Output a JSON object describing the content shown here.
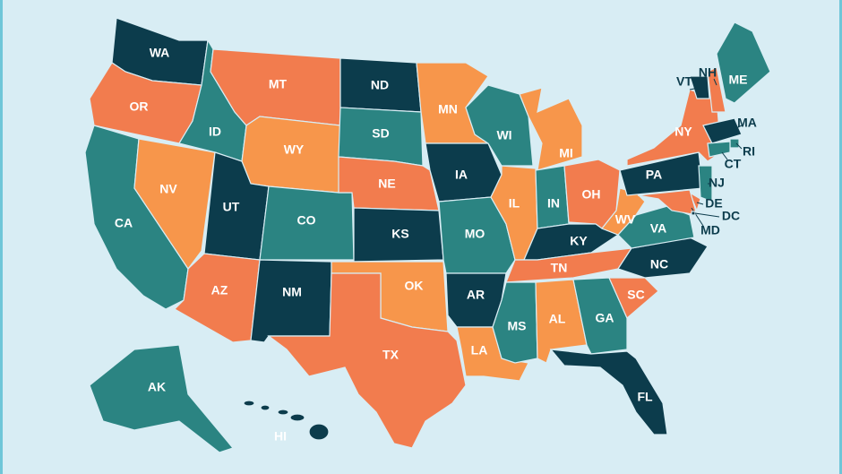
{
  "states": [
    {
      "label": "WA"
    },
    {
      "label": "OR"
    },
    {
      "label": "CA"
    },
    {
      "label": "NV"
    },
    {
      "label": "ID"
    },
    {
      "label": "MT"
    },
    {
      "label": "WY"
    },
    {
      "label": "UT"
    },
    {
      "label": "CO"
    },
    {
      "label": "AZ"
    },
    {
      "label": "NM"
    },
    {
      "label": "ND"
    },
    {
      "label": "SD"
    },
    {
      "label": "NE"
    },
    {
      "label": "KS"
    },
    {
      "label": "OK"
    },
    {
      "label": "TX"
    },
    {
      "label": "MN"
    },
    {
      "label": "IA"
    },
    {
      "label": "MO"
    },
    {
      "label": "AR"
    },
    {
      "label": "LA"
    },
    {
      "label": "WI"
    },
    {
      "label": "MI"
    },
    {
      "label": "IL"
    },
    {
      "label": "IN"
    },
    {
      "label": "OH"
    },
    {
      "label": "KY"
    },
    {
      "label": "TN"
    },
    {
      "label": "MS"
    },
    {
      "label": "AL"
    },
    {
      "label": "GA"
    },
    {
      "label": "FL"
    },
    {
      "label": "SC"
    },
    {
      "label": "NC"
    },
    {
      "label": "VA"
    },
    {
      "label": "WV"
    },
    {
      "label": "PA"
    },
    {
      "label": "NY"
    },
    {
      "label": "VT"
    },
    {
      "label": "NH"
    },
    {
      "label": "ME"
    },
    {
      "label": "MA"
    },
    {
      "label": "RI"
    },
    {
      "label": "CT"
    },
    {
      "label": "NJ"
    },
    {
      "label": "DE"
    },
    {
      "label": "MD"
    },
    {
      "label": "DC"
    },
    {
      "label": "AK"
    },
    {
      "label": "HI"
    }
  ]
}
